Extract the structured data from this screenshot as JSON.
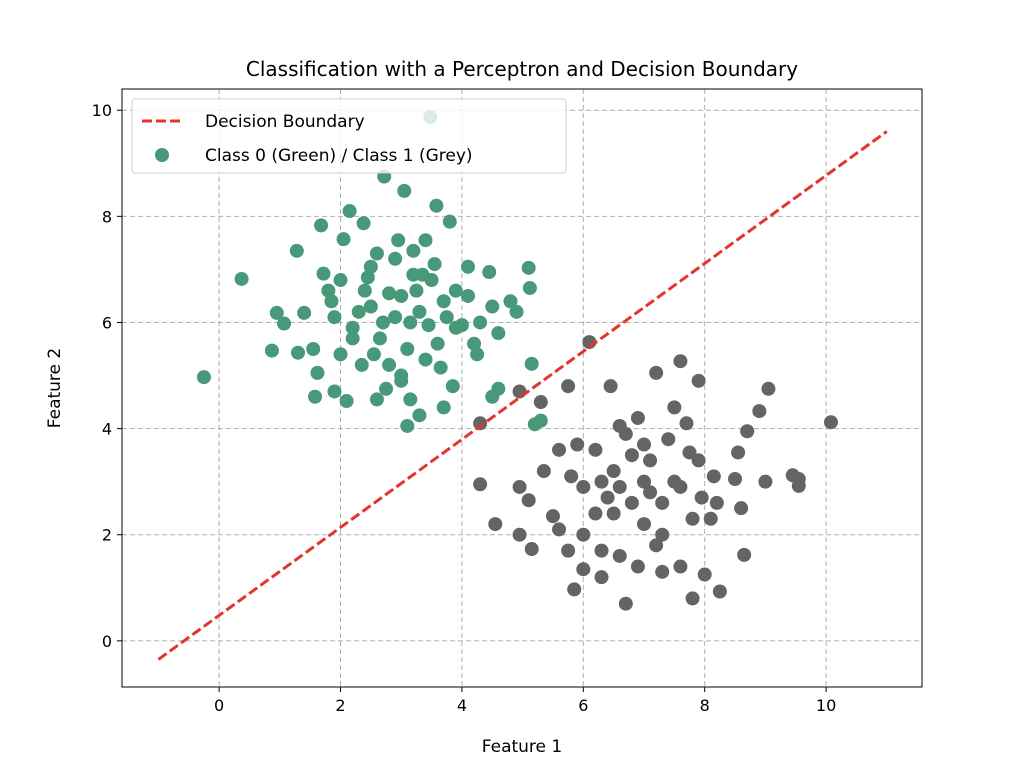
{
  "chart_data": {
    "type": "scatter",
    "title": "Classification with a Perceptron and Decision Boundary",
    "xlabel": "Feature 1",
    "ylabel": "Feature 2",
    "xlim": [
      -1.6,
      11.58
    ],
    "ylim": [
      -0.87,
      10.4
    ],
    "xticks": [
      0,
      2,
      4,
      6,
      8,
      10
    ],
    "yticks": [
      0,
      2,
      4,
      6,
      8,
      10
    ],
    "grid": true,
    "legend_position": "top-left",
    "legend": [
      "Decision Boundary",
      "Class 0 (Green) / Class 1 (Grey)"
    ],
    "colors": {
      "class0": "#47997a",
      "class1": "#646464",
      "boundary": "#e2362b"
    },
    "boundary": {
      "x": [
        -1,
        11
      ],
      "y": [
        -0.35,
        9.6
      ]
    },
    "class0": [
      [
        -0.25,
        4.97
      ],
      [
        0.37,
        6.82
      ],
      [
        0.87,
        5.47
      ],
      [
        0.95,
        6.18
      ],
      [
        1.07,
        5.98
      ],
      [
        1.28,
        7.35
      ],
      [
        1.3,
        5.43
      ],
      [
        1.4,
        6.18
      ],
      [
        1.55,
        5.5
      ],
      [
        1.58,
        4.6
      ],
      [
        1.62,
        5.05
      ],
      [
        1.68,
        7.83
      ],
      [
        1.72,
        6.92
      ],
      [
        1.8,
        6.6
      ],
      [
        1.85,
        6.4
      ],
      [
        1.9,
        4.7
      ],
      [
        2.0,
        6.8
      ],
      [
        2.05,
        7.57
      ],
      [
        2.1,
        4.52
      ],
      [
        2.15,
        8.1
      ],
      [
        2.2,
        5.7
      ],
      [
        2.3,
        6.2
      ],
      [
        2.38,
        7.87
      ],
      [
        2.45,
        6.85
      ],
      [
        2.5,
        7.05
      ],
      [
        2.55,
        5.4
      ],
      [
        2.6,
        4.55
      ],
      [
        2.72,
        8.75
      ],
      [
        2.75,
        4.75
      ],
      [
        2.8,
        6.55
      ],
      [
        2.9,
        7.2
      ],
      [
        2.95,
        7.55
      ],
      [
        3.0,
        5.0
      ],
      [
        3.05,
        8.48
      ],
      [
        3.1,
        4.05
      ],
      [
        3.15,
        6.0
      ],
      [
        3.2,
        7.35
      ],
      [
        3.3,
        4.25
      ],
      [
        3.35,
        6.9
      ],
      [
        3.4,
        7.55
      ],
      [
        3.48,
        9.87
      ],
      [
        3.58,
        8.2
      ],
      [
        3.65,
        5.15
      ],
      [
        3.7,
        4.4
      ],
      [
        3.8,
        7.9
      ],
      [
        3.85,
        4.8
      ],
      [
        3.9,
        6.6
      ],
      [
        4.0,
        5.95
      ],
      [
        4.1,
        7.05
      ],
      [
        4.2,
        5.6
      ],
      [
        4.3,
        6.0
      ],
      [
        4.45,
        6.95
      ],
      [
        4.5,
        4.6
      ],
      [
        4.6,
        4.75
      ],
      [
        4.8,
        6.4
      ],
      [
        4.9,
        6.2
      ],
      [
        5.1,
        7.03
      ],
      [
        5.12,
        6.65
      ],
      [
        5.15,
        5.22
      ],
      [
        5.2,
        4.08
      ],
      [
        5.3,
        4.15
      ],
      [
        2.5,
        6.3
      ],
      [
        2.7,
        6.0
      ],
      [
        3.0,
        6.5
      ],
      [
        3.3,
        6.2
      ],
      [
        3.5,
        6.8
      ],
      [
        2.2,
        5.9
      ],
      [
        3.1,
        5.5
      ],
      [
        3.6,
        5.6
      ],
      [
        2.8,
        5.2
      ],
      [
        3.4,
        5.3
      ],
      [
        3.9,
        5.9
      ],
      [
        2.4,
        6.6
      ],
      [
        3.2,
        6.9
      ],
      [
        3.7,
        6.4
      ],
      [
        4.25,
        5.4
      ],
      [
        4.6,
        5.8
      ],
      [
        4.5,
        6.3
      ],
      [
        2.0,
        5.4
      ],
      [
        1.9,
        6.1
      ],
      [
        2.6,
        7.3
      ],
      [
        3.45,
        5.95
      ],
      [
        3.15,
        4.55
      ],
      [
        3.0,
        4.9
      ],
      [
        3.55,
        7.1
      ],
      [
        4.1,
        6.5
      ],
      [
        2.9,
        6.1
      ],
      [
        3.25,
        6.6
      ],
      [
        2.65,
        5.7
      ],
      [
        3.75,
        6.1
      ],
      [
        2.35,
        5.2
      ]
    ],
    "class1": [
      [
        4.3,
        4.1
      ],
      [
        4.3,
        2.95
      ],
      [
        4.55,
        2.2
      ],
      [
        4.95,
        4.7
      ],
      [
        4.95,
        2.9
      ],
      [
        5.1,
        2.65
      ],
      [
        4.95,
        2.0
      ],
      [
        5.15,
        1.73
      ],
      [
        5.3,
        4.5
      ],
      [
        5.35,
        3.2
      ],
      [
        5.5,
        2.35
      ],
      [
        5.6,
        2.1
      ],
      [
        5.75,
        4.8
      ],
      [
        5.75,
        1.7
      ],
      [
        5.85,
        0.97
      ],
      [
        6.0,
        2.9
      ],
      [
        6.0,
        1.35
      ],
      [
        6.1,
        5.63
      ],
      [
        6.3,
        1.2
      ],
      [
        6.3,
        3.0
      ],
      [
        6.45,
        4.8
      ],
      [
        6.5,
        2.4
      ],
      [
        6.7,
        0.7
      ],
      [
        6.6,
        4.05
      ],
      [
        6.8,
        3.5
      ],
      [
        6.9,
        1.4
      ],
      [
        7.0,
        3.0
      ],
      [
        7.1,
        2.8
      ],
      [
        7.2,
        5.05
      ],
      [
        7.3,
        1.3
      ],
      [
        7.5,
        4.4
      ],
      [
        7.6,
        5.27
      ],
      [
        7.6,
        1.4
      ],
      [
        7.75,
        3.55
      ],
      [
        7.8,
        0.8
      ],
      [
        7.9,
        4.9
      ],
      [
        7.95,
        2.7
      ],
      [
        8.0,
        1.25
      ],
      [
        8.15,
        3.1
      ],
      [
        8.2,
        2.6
      ],
      [
        8.25,
        0.93
      ],
      [
        8.5,
        3.05
      ],
      [
        8.55,
        3.55
      ],
      [
        8.6,
        2.5
      ],
      [
        8.65,
        1.62
      ],
      [
        8.7,
        3.95
      ],
      [
        8.9,
        4.33
      ],
      [
        9.0,
        3.0
      ],
      [
        9.05,
        4.75
      ],
      [
        9.45,
        3.12
      ],
      [
        9.55,
        2.92
      ],
      [
        9.55,
        3.05
      ],
      [
        10.08,
        4.12
      ],
      [
        6.2,
        3.6
      ],
      [
        6.5,
        3.2
      ],
      [
        7.0,
        2.2
      ],
      [
        7.3,
        2.0
      ],
      [
        6.8,
        2.6
      ],
      [
        7.5,
        3.0
      ],
      [
        6.3,
        1.7
      ],
      [
        6.6,
        1.6
      ],
      [
        7.4,
        3.8
      ],
      [
        6.9,
        4.2
      ],
      [
        5.9,
        3.7
      ],
      [
        5.6,
        3.6
      ],
      [
        7.8,
        2.3
      ],
      [
        8.1,
        2.3
      ],
      [
        7.2,
        1.8
      ],
      [
        6.4,
        2.7
      ],
      [
        6.0,
        2.0
      ],
      [
        7.6,
        2.9
      ],
      [
        7.0,
        3.7
      ],
      [
        7.9,
        3.4
      ],
      [
        6.7,
        3.9
      ],
      [
        7.1,
        3.4
      ],
      [
        6.6,
        2.9
      ],
      [
        7.3,
        2.6
      ],
      [
        6.2,
        2.4
      ],
      [
        7.7,
        4.1
      ],
      [
        5.8,
        3.1
      ]
    ]
  }
}
